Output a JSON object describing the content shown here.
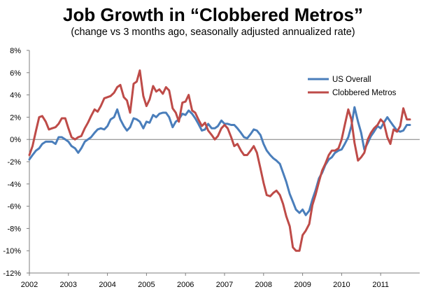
{
  "chart_data": {
    "type": "line",
    "title": "Job Growth in “Clobbered Metros”",
    "subtitle": "(change vs 3 months ago, seasonally adjusted annualized rate)",
    "xlabel": "",
    "ylabel": "",
    "x_range": [
      2002.0,
      2012.0
    ],
    "ylim": [
      -12,
      8
    ],
    "y_ticks": [
      "8%",
      "6%",
      "4%",
      "2%",
      "0%",
      "-2%",
      "-4%",
      "-6%",
      "-8%",
      "-10%",
      "-12%"
    ],
    "x_ticks": [
      "2002",
      "2003",
      "2004",
      "2005",
      "2006",
      "2007",
      "2008",
      "2009",
      "2010",
      "2011"
    ],
    "grid": false,
    "legend_position": "top-right",
    "series": [
      {
        "name": "US Overall",
        "color": "#4a7ebb",
        "points": [
          [
            2002.0,
            -1.8
          ],
          [
            2002.08,
            -1.4
          ],
          [
            2002.17,
            -1.0
          ],
          [
            2002.25,
            -0.8
          ],
          [
            2002.33,
            -0.4
          ],
          [
            2002.42,
            -0.2
          ],
          [
            2002.5,
            -0.2
          ],
          [
            2002.58,
            -0.2
          ],
          [
            2002.67,
            -0.4
          ],
          [
            2002.75,
            0.2
          ],
          [
            2002.83,
            0.2
          ],
          [
            2002.92,
            0.0
          ],
          [
            2003.0,
            -0.2
          ],
          [
            2003.08,
            -0.6
          ],
          [
            2003.17,
            -0.8
          ],
          [
            2003.25,
            -1.2
          ],
          [
            2003.33,
            -0.8
          ],
          [
            2003.42,
            -0.2
          ],
          [
            2003.5,
            0.0
          ],
          [
            2003.58,
            0.2
          ],
          [
            2003.67,
            0.6
          ],
          [
            2003.75,
            0.9
          ],
          [
            2003.83,
            1.0
          ],
          [
            2003.92,
            0.9
          ],
          [
            2004.0,
            1.2
          ],
          [
            2004.08,
            1.8
          ],
          [
            2004.17,
            2.0
          ],
          [
            2004.25,
            2.7
          ],
          [
            2004.33,
            1.8
          ],
          [
            2004.42,
            1.2
          ],
          [
            2004.5,
            0.8
          ],
          [
            2004.58,
            1.1
          ],
          [
            2004.67,
            1.9
          ],
          [
            2004.75,
            1.8
          ],
          [
            2004.83,
            1.6
          ],
          [
            2004.92,
            1.0
          ],
          [
            2005.0,
            1.6
          ],
          [
            2005.08,
            1.5
          ],
          [
            2005.17,
            2.2
          ],
          [
            2005.25,
            2.0
          ],
          [
            2005.33,
            2.3
          ],
          [
            2005.42,
            2.4
          ],
          [
            2005.5,
            2.4
          ],
          [
            2005.58,
            2.0
          ],
          [
            2005.67,
            1.1
          ],
          [
            2005.75,
            1.6
          ],
          [
            2005.83,
            1.8
          ],
          [
            2005.92,
            2.3
          ],
          [
            2006.0,
            2.2
          ],
          [
            2006.08,
            2.6
          ],
          [
            2006.17,
            2.3
          ],
          [
            2006.25,
            1.9
          ],
          [
            2006.33,
            1.4
          ],
          [
            2006.42,
            0.8
          ],
          [
            2006.5,
            0.9
          ],
          [
            2006.58,
            1.4
          ],
          [
            2006.67,
            1.0
          ],
          [
            2006.75,
            1.0
          ],
          [
            2006.83,
            1.2
          ],
          [
            2006.92,
            1.7
          ],
          [
            2007.0,
            1.4
          ],
          [
            2007.08,
            1.4
          ],
          [
            2007.17,
            1.3
          ],
          [
            2007.25,
            1.3
          ],
          [
            2007.33,
            1.0
          ],
          [
            2007.42,
            0.6
          ],
          [
            2007.5,
            0.2
          ],
          [
            2007.58,
            0.1
          ],
          [
            2007.67,
            0.5
          ],
          [
            2007.75,
            0.9
          ],
          [
            2007.83,
            0.8
          ],
          [
            2007.92,
            0.4
          ],
          [
            2008.0,
            -0.4
          ],
          [
            2008.08,
            -1.0
          ],
          [
            2008.17,
            -1.4
          ],
          [
            2008.25,
            -1.7
          ],
          [
            2008.33,
            -1.9
          ],
          [
            2008.42,
            -2.2
          ],
          [
            2008.5,
            -3.0
          ],
          [
            2008.58,
            -3.8
          ],
          [
            2008.67,
            -4.9
          ],
          [
            2008.75,
            -5.6
          ],
          [
            2008.83,
            -6.3
          ],
          [
            2008.92,
            -6.6
          ],
          [
            2009.0,
            -6.3
          ],
          [
            2009.08,
            -6.8
          ],
          [
            2009.17,
            -6.4
          ],
          [
            2009.25,
            -5.4
          ],
          [
            2009.33,
            -4.6
          ],
          [
            2009.42,
            -3.5
          ],
          [
            2009.5,
            -3.0
          ],
          [
            2009.58,
            -2.3
          ],
          [
            2009.67,
            -1.8
          ],
          [
            2009.75,
            -1.6
          ],
          [
            2009.83,
            -1.2
          ],
          [
            2009.92,
            -1.0
          ],
          [
            2010.0,
            -0.9
          ],
          [
            2010.08,
            -0.4
          ],
          [
            2010.17,
            0.2
          ],
          [
            2010.25,
            1.2
          ],
          [
            2010.33,
            2.9
          ],
          [
            2010.42,
            1.6
          ],
          [
            2010.5,
            0.6
          ],
          [
            2010.58,
            -0.9
          ],
          [
            2010.67,
            -0.3
          ],
          [
            2010.75,
            0.3
          ],
          [
            2010.83,
            0.7
          ],
          [
            2010.92,
            1.2
          ],
          [
            2011.0,
            1.0
          ],
          [
            2011.08,
            1.5
          ],
          [
            2011.17,
            2.0
          ],
          [
            2011.25,
            1.6
          ],
          [
            2011.33,
            1.2
          ],
          [
            2011.42,
            0.8
          ],
          [
            2011.5,
            0.7
          ],
          [
            2011.58,
            0.8
          ],
          [
            2011.67,
            1.3
          ],
          [
            2011.75,
            1.3
          ]
        ]
      },
      {
        "name": "Clobbered Metros",
        "color": "#be4b48",
        "points": [
          [
            2002.0,
            -1.4
          ],
          [
            2002.08,
            -0.6
          ],
          [
            2002.17,
            0.8
          ],
          [
            2002.25,
            2.0
          ],
          [
            2002.33,
            2.1
          ],
          [
            2002.42,
            1.6
          ],
          [
            2002.5,
            0.9
          ],
          [
            2002.58,
            1.0
          ],
          [
            2002.67,
            1.1
          ],
          [
            2002.75,
            1.4
          ],
          [
            2002.83,
            1.9
          ],
          [
            2002.92,
            1.9
          ],
          [
            2003.0,
            1.0
          ],
          [
            2003.08,
            0.2
          ],
          [
            2003.17,
            0.0
          ],
          [
            2003.25,
            0.2
          ],
          [
            2003.33,
            0.3
          ],
          [
            2003.42,
            1.0
          ],
          [
            2003.5,
            1.5
          ],
          [
            2003.58,
            2.1
          ],
          [
            2003.67,
            2.7
          ],
          [
            2003.75,
            2.5
          ],
          [
            2003.83,
            3.0
          ],
          [
            2003.92,
            3.7
          ],
          [
            2004.0,
            3.8
          ],
          [
            2004.08,
            3.9
          ],
          [
            2004.17,
            4.2
          ],
          [
            2004.25,
            4.7
          ],
          [
            2004.33,
            4.9
          ],
          [
            2004.42,
            3.8
          ],
          [
            2004.5,
            3.5
          ],
          [
            2004.58,
            2.4
          ],
          [
            2004.67,
            5.0
          ],
          [
            2004.75,
            5.2
          ],
          [
            2004.83,
            6.2
          ],
          [
            2004.92,
            3.9
          ],
          [
            2005.0,
            3.0
          ],
          [
            2005.08,
            3.6
          ],
          [
            2005.17,
            4.8
          ],
          [
            2005.25,
            4.3
          ],
          [
            2005.33,
            4.5
          ],
          [
            2005.42,
            4.1
          ],
          [
            2005.5,
            4.7
          ],
          [
            2005.58,
            4.4
          ],
          [
            2005.67,
            2.8
          ],
          [
            2005.75,
            2.4
          ],
          [
            2005.83,
            1.6
          ],
          [
            2005.92,
            3.3
          ],
          [
            2006.0,
            3.4
          ],
          [
            2006.08,
            4.0
          ],
          [
            2006.17,
            2.6
          ],
          [
            2006.25,
            2.4
          ],
          [
            2006.33,
            1.8
          ],
          [
            2006.42,
            1.2
          ],
          [
            2006.5,
            1.5
          ],
          [
            2006.58,
            0.8
          ],
          [
            2006.67,
            0.4
          ],
          [
            2006.75,
            0.0
          ],
          [
            2006.83,
            0.3
          ],
          [
            2006.92,
            1.0
          ],
          [
            2007.0,
            1.3
          ],
          [
            2007.08,
            1.0
          ],
          [
            2007.17,
            0.2
          ],
          [
            2007.25,
            -0.6
          ],
          [
            2007.33,
            -0.4
          ],
          [
            2007.42,
            -1.0
          ],
          [
            2007.5,
            -1.4
          ],
          [
            2007.58,
            -1.4
          ],
          [
            2007.67,
            -1.0
          ],
          [
            2007.75,
            -0.6
          ],
          [
            2007.83,
            -1.2
          ],
          [
            2007.92,
            -2.6
          ],
          [
            2008.0,
            -3.9
          ],
          [
            2008.08,
            -5.0
          ],
          [
            2008.17,
            -5.1
          ],
          [
            2008.25,
            -4.8
          ],
          [
            2008.33,
            -4.6
          ],
          [
            2008.42,
            -5.0
          ],
          [
            2008.5,
            -5.8
          ],
          [
            2008.58,
            -6.9
          ],
          [
            2008.67,
            -7.8
          ],
          [
            2008.75,
            -9.7
          ],
          [
            2008.83,
            -10.0
          ],
          [
            2008.92,
            -10.0
          ],
          [
            2009.0,
            -8.6
          ],
          [
            2009.08,
            -8.2
          ],
          [
            2009.17,
            -7.6
          ],
          [
            2009.25,
            -5.9
          ],
          [
            2009.33,
            -5.0
          ],
          [
            2009.42,
            -3.8
          ],
          [
            2009.5,
            -2.8
          ],
          [
            2009.58,
            -2.2
          ],
          [
            2009.67,
            -1.4
          ],
          [
            2009.75,
            -1.0
          ],
          [
            2009.83,
            -1.0
          ],
          [
            2009.92,
            -0.8
          ],
          [
            2010.0,
            0.0
          ],
          [
            2010.08,
            1.3
          ],
          [
            2010.17,
            2.7
          ],
          [
            2010.25,
            1.8
          ],
          [
            2010.33,
            -0.3
          ],
          [
            2010.42,
            -1.9
          ],
          [
            2010.5,
            -1.6
          ],
          [
            2010.58,
            -1.2
          ],
          [
            2010.67,
            0.0
          ],
          [
            2010.75,
            0.6
          ],
          [
            2010.83,
            1.0
          ],
          [
            2010.92,
            1.3
          ],
          [
            2011.0,
            1.8
          ],
          [
            2011.08,
            1.5
          ],
          [
            2011.17,
            0.2
          ],
          [
            2011.25,
            -0.4
          ],
          [
            2011.33,
            0.9
          ],
          [
            2011.42,
            0.7
          ],
          [
            2011.5,
            1.2
          ],
          [
            2011.58,
            2.8
          ],
          [
            2011.67,
            1.8
          ],
          [
            2011.75,
            1.8
          ]
        ]
      }
    ]
  }
}
